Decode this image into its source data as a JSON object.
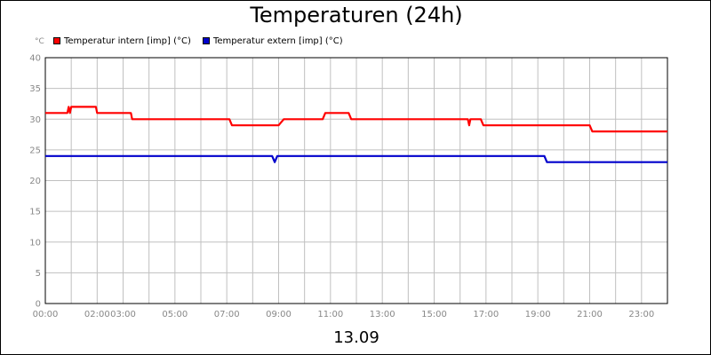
{
  "title": "Temperaturen (24h)",
  "date_label": "13.09",
  "unit_label": "°C",
  "chart_data": {
    "type": "line",
    "title": "Temperaturen (24h)",
    "xlabel": "13.09",
    "ylabel": "°C",
    "xlim": [
      0,
      24
    ],
    "ylim": [
      0,
      40
    ],
    "yticks": [
      0,
      5,
      10,
      15,
      20,
      25,
      30,
      35,
      40
    ],
    "xtick_labels": [
      {
        "x": 0,
        "label": "00:00"
      },
      {
        "x": 2,
        "label": "02:00"
      },
      {
        "x": 3,
        "label": "03:00"
      },
      {
        "x": 5,
        "label": "05:00"
      },
      {
        "x": 7,
        "label": "07:00"
      },
      {
        "x": 9,
        "label": "09:00"
      },
      {
        "x": 11,
        "label": "11:00"
      },
      {
        "x": 13,
        "label": "13:00"
      },
      {
        "x": 15,
        "label": "15:00"
      },
      {
        "x": 17,
        "label": "17:00"
      },
      {
        "x": 19,
        "label": "19:00"
      },
      {
        "x": 21,
        "label": "21:00"
      },
      {
        "x": 23,
        "label": "23:00"
      }
    ],
    "grid": true,
    "legend_position": "top-left",
    "series": [
      {
        "name": "Temperatur intern [imp] (°C)",
        "color": "#ff0000",
        "x": [
          0,
          0.85,
          0.9,
          0.95,
          1.0,
          1.05,
          1.15,
          1.95,
          2.0,
          3.3,
          3.35,
          7.1,
          7.2,
          9.0,
          9.2,
          10.7,
          10.8,
          11.7,
          11.8,
          16.3,
          16.35,
          16.4,
          16.5,
          16.8,
          16.9,
          21.0,
          21.1,
          24
        ],
        "y": [
          31,
          31,
          32,
          31,
          32,
          32,
          32,
          32,
          31,
          31,
          30,
          30,
          29,
          29,
          30,
          30,
          31,
          31,
          30,
          30,
          29,
          30,
          30,
          30,
          29,
          29,
          28,
          28
        ]
      },
      {
        "name": "Temperatur extern [imp] (°C)",
        "color": "#0000cc",
        "x": [
          0,
          8.75,
          8.85,
          8.95,
          19.25,
          19.35,
          24
        ],
        "y": [
          24,
          24,
          23,
          24,
          24,
          23,
          23
        ]
      }
    ]
  }
}
